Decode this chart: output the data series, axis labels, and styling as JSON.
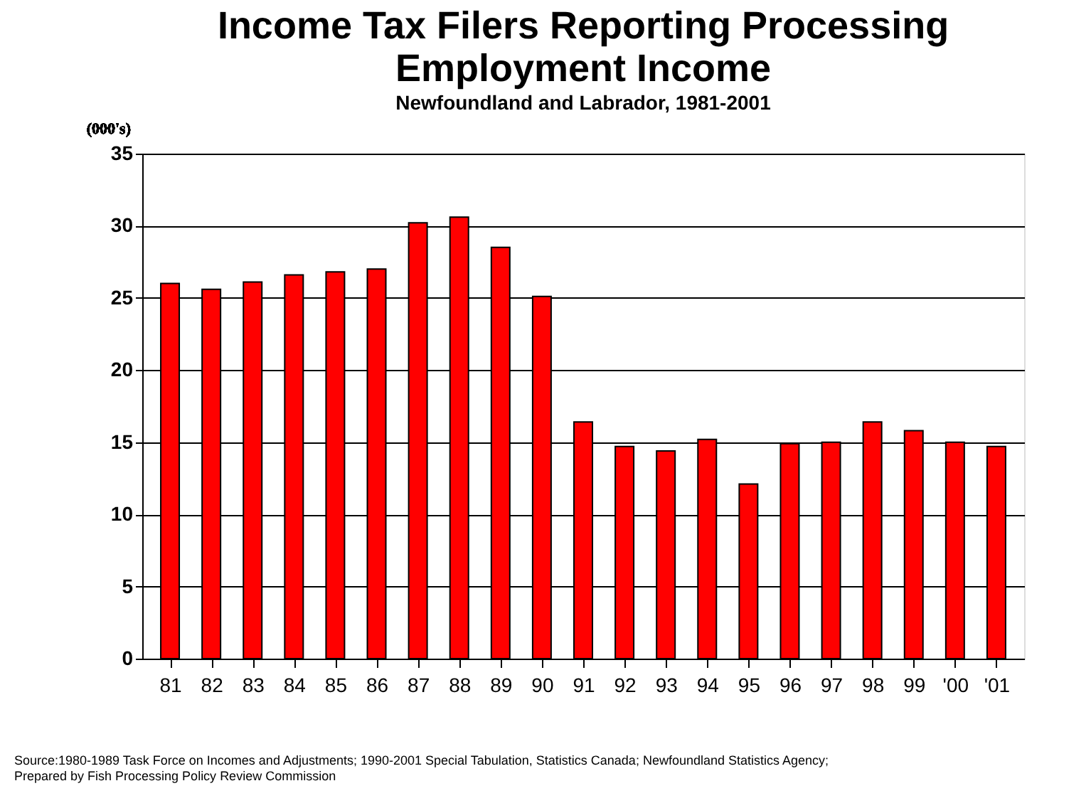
{
  "chart_data": {
    "type": "bar",
    "title": [
      "Income Tax Filers Reporting Processing",
      "Employment Income"
    ],
    "subtitle": "Newfoundland and Labrador, 1981-2001",
    "ylabel": "(000's)",
    "categories": [
      "81",
      "82",
      "83",
      "84",
      "85",
      "86",
      "87",
      "88",
      "89",
      "90",
      "91",
      "92",
      "93",
      "94",
      "95",
      "96",
      "97",
      "98",
      "99",
      "'00",
      "'01"
    ],
    "values": [
      26.0,
      25.6,
      26.1,
      26.6,
      26.8,
      27.0,
      30.2,
      30.6,
      28.5,
      25.1,
      16.4,
      14.7,
      14.4,
      15.2,
      12.1,
      14.9,
      15.0,
      16.4,
      15.8,
      15.0,
      14.7
    ],
    "color": "#ff0000",
    "ylim": [
      0,
      35
    ],
    "yticks": [
      0,
      5,
      10,
      15,
      20,
      25,
      30,
      35
    ],
    "grid": "y",
    "annotations": [
      "Source:1980-1989 Task Force on Incomes and Adjustments; 1990-2001 Special Tabulation, Statistics Canada; Newfoundland Statistics Agency;",
      "Prepared by Fish Processing Policy Review Commission"
    ]
  }
}
